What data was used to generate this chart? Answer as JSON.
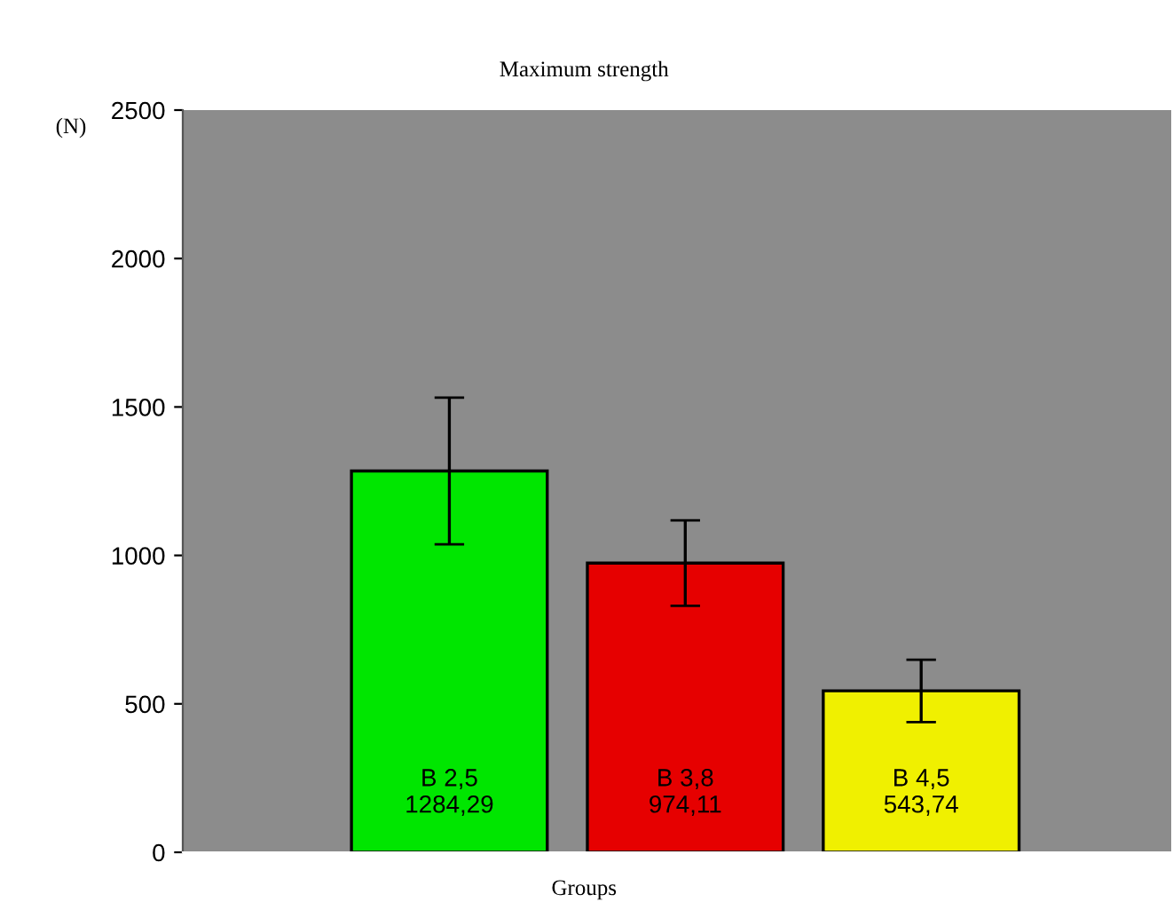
{
  "chart_data": {
    "type": "bar",
    "title": "Maximum strength",
    "xlabel": "Groups",
    "ylabel": "(N)",
    "categories": [
      "B 2,5",
      "B 3,8",
      "B 4,5"
    ],
    "values": [
      1284.29,
      974.11,
      543.74
    ],
    "colors": [
      "#00e600",
      "#e60000",
      "#f0f000"
    ],
    "errors": [
      247,
      144,
      105
    ],
    "value_labels": [
      "1284,29",
      "974,11",
      "543,74"
    ],
    "ylim": [
      0,
      2500
    ],
    "yticks": [
      0,
      500,
      1000,
      1500,
      2000,
      2500
    ],
    "grid": false,
    "legend": false
  }
}
